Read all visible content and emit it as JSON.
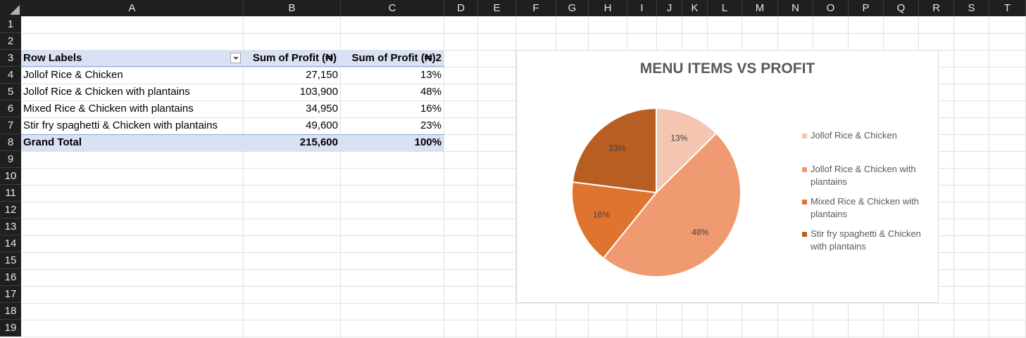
{
  "columns": [
    "A",
    "B",
    "C",
    "D",
    "E",
    "F",
    "G",
    "H",
    "I",
    "J",
    "K",
    "L",
    "M",
    "N",
    "O",
    "P",
    "Q",
    "R",
    "S",
    "T"
  ],
  "rows": [
    "1",
    "2",
    "3",
    "4",
    "5",
    "6",
    "7",
    "8",
    "9",
    "10",
    "11",
    "12",
    "13",
    "14",
    "15",
    "16",
    "17",
    "18",
    "19"
  ],
  "pivot": {
    "headers": [
      "Row Labels",
      "Sum of Profit (₦)",
      "Sum of Profit (₦)2"
    ],
    "rows": [
      {
        "label": "Jollof Rice & Chicken",
        "profit": "27,150",
        "pct": "13%"
      },
      {
        "label": "Jollof Rice & Chicken with plantains",
        "profit": "103,900",
        "pct": "48%"
      },
      {
        "label": "Mixed Rice & Chicken with plantains",
        "profit": "34,950",
        "pct": "16%"
      },
      {
        "label": "Stir fry spaghetti & Chicken with plantains",
        "profit": "49,600",
        "pct": "23%"
      }
    ],
    "total": {
      "label": "Grand Total",
      "profit": "215,600",
      "pct": "100%"
    }
  },
  "chart_data": {
    "type": "pie",
    "title": "MENU ITEMS VS PROFIT",
    "categories": [
      "Jollof Rice & Chicken",
      "Jollof Rice & Chicken with plantains",
      "Mixed Rice & Chicken with plantains",
      "Stir fry spaghetti & Chicken with plantains"
    ],
    "values": [
      27150,
      103900,
      34950,
      49600
    ],
    "data_labels": [
      "13%",
      "48%",
      "16%",
      "23%"
    ],
    "colors": [
      "#f4c5b0",
      "#f09a71",
      "#df742f",
      "#b85e22"
    ],
    "legend_position": "right"
  }
}
